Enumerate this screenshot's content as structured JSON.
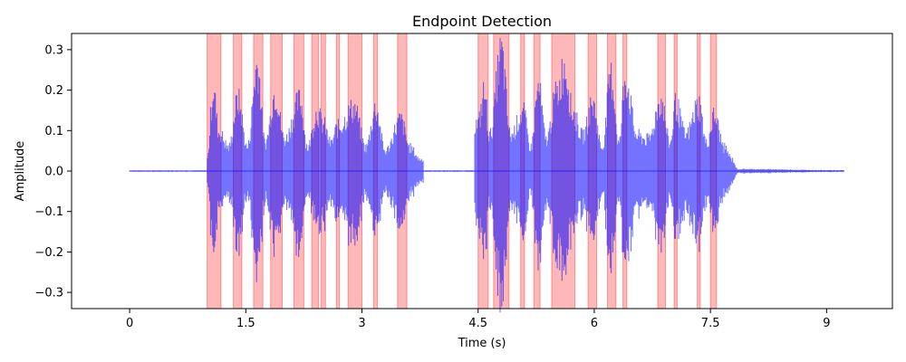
{
  "chart_data": {
    "type": "area",
    "title": "Endpoint Detection",
    "xlabel": "Time (s)",
    "ylabel": "Amplitude",
    "xlim": [
      -0.75,
      9.85
    ],
    "ylim": [
      -0.34,
      0.34
    ],
    "x_ticks": [
      0,
      1.5,
      3,
      4.5,
      6,
      7.5,
      9
    ],
    "x_tick_labels": [
      "0",
      "1.5",
      "3",
      "4.5",
      "6",
      "7.5",
      "9"
    ],
    "y_ticks": [
      -0.3,
      -0.2,
      -0.1,
      0.0,
      0.1,
      0.2,
      0.3
    ],
    "y_tick_labels": [
      "−0.3",
      "−0.2",
      "−0.1",
      "0.0",
      "0.1",
      "0.2",
      "0.3"
    ],
    "grid": false,
    "waveform_color": "#0000ff",
    "highlight_color": "#ff0000",
    "signal_duration": 9.22,
    "speech_regions": [
      [
        1.0,
        1.18
      ],
      [
        1.34,
        1.45
      ],
      [
        1.6,
        1.72
      ],
      [
        1.82,
        1.97
      ],
      [
        2.12,
        2.25
      ],
      [
        2.35,
        2.44
      ],
      [
        2.47,
        2.53
      ],
      [
        2.67,
        2.71
      ],
      [
        2.82,
        3.0
      ],
      [
        3.15,
        3.2
      ],
      [
        3.46,
        3.58
      ],
      [
        4.5,
        4.63
      ],
      [
        4.7,
        4.9
      ],
      [
        5.05,
        5.1
      ],
      [
        5.22,
        5.3
      ],
      [
        5.45,
        5.75
      ],
      [
        5.92,
        6.03
      ],
      [
        6.17,
        6.28
      ],
      [
        6.37,
        6.42
      ],
      [
        6.82,
        6.92
      ],
      [
        7.03,
        7.07
      ],
      [
        7.33,
        7.37
      ],
      [
        7.5,
        7.58
      ]
    ],
    "envelope_peaks": [
      [
        1.0,
        0.03
      ],
      [
        1.08,
        0.21
      ],
      [
        1.15,
        0.1
      ],
      [
        1.28,
        0.06
      ],
      [
        1.4,
        0.18
      ],
      [
        1.52,
        0.06
      ],
      [
        1.65,
        0.27
      ],
      [
        1.75,
        0.07
      ],
      [
        1.88,
        0.2
      ],
      [
        2.0,
        0.08
      ],
      [
        2.2,
        0.18
      ],
      [
        2.3,
        0.06
      ],
      [
        2.42,
        0.15
      ],
      [
        2.5,
        0.12
      ],
      [
        2.6,
        0.07
      ],
      [
        2.68,
        0.11
      ],
      [
        2.9,
        0.16
      ],
      [
        3.05,
        0.06
      ],
      [
        3.18,
        0.16
      ],
      [
        3.3,
        0.05
      ],
      [
        3.5,
        0.13
      ],
      [
        3.62,
        0.06
      ],
      [
        3.75,
        0.03
      ],
      [
        4.5,
        0.12
      ],
      [
        4.58,
        0.2
      ],
      [
        4.65,
        0.09
      ],
      [
        4.8,
        0.3
      ],
      [
        4.92,
        0.09
      ],
      [
        5.08,
        0.15
      ],
      [
        5.18,
        0.06
      ],
      [
        5.28,
        0.21
      ],
      [
        5.38,
        0.08
      ],
      [
        5.52,
        0.2
      ],
      [
        5.62,
        0.27
      ],
      [
        5.72,
        0.15
      ],
      [
        5.85,
        0.09
      ],
      [
        5.98,
        0.17
      ],
      [
        6.1,
        0.06
      ],
      [
        6.22,
        0.24
      ],
      [
        6.32,
        0.07
      ],
      [
        6.4,
        0.24
      ],
      [
        6.55,
        0.09
      ],
      [
        6.7,
        0.08
      ],
      [
        6.86,
        0.18
      ],
      [
        6.98,
        0.07
      ],
      [
        7.05,
        0.17
      ],
      [
        7.18,
        0.09
      ],
      [
        7.35,
        0.17
      ],
      [
        7.45,
        0.07
      ],
      [
        7.55,
        0.14
      ],
      [
        7.68,
        0.06
      ],
      [
        7.78,
        0.03
      ],
      [
        7.85,
        0.005
      ],
      [
        9.22,
        0.002
      ]
    ]
  }
}
